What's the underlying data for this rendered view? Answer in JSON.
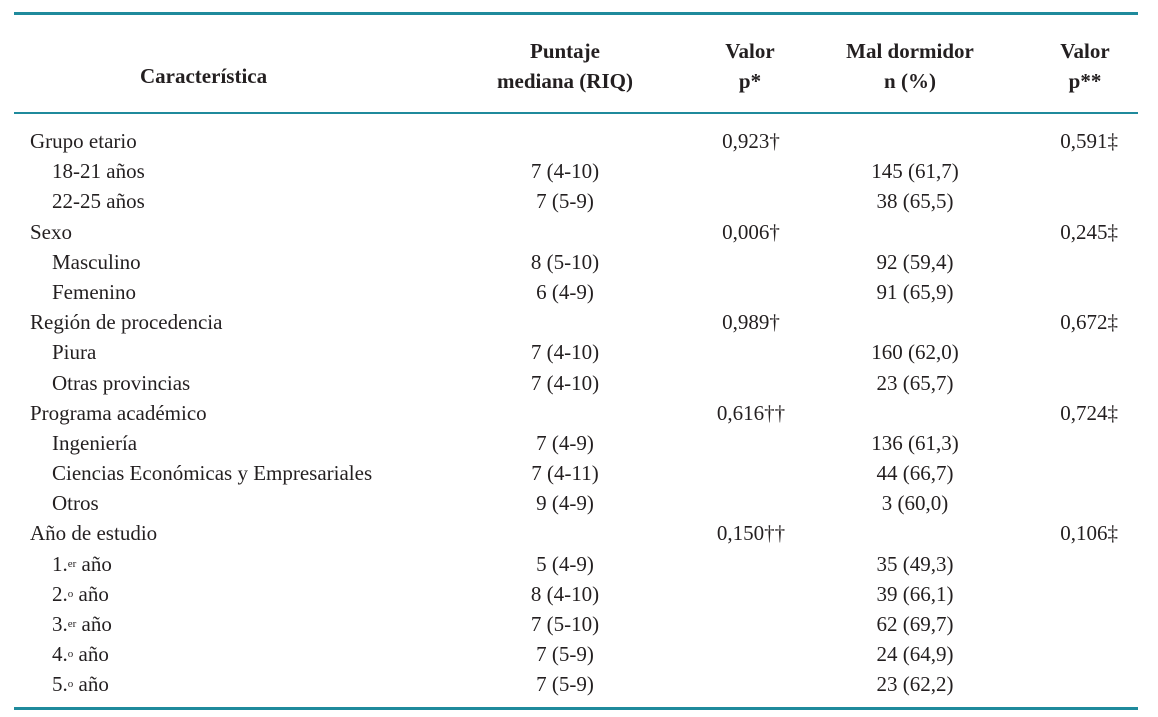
{
  "table": {
    "headers": {
      "caracteristica": "Característica",
      "puntaje_line1": "Puntaje",
      "puntaje_line2": "mediana (RIQ)",
      "valor1_line1": "Valor",
      "valor1_line2": "p*",
      "mal_line1": "Mal dormidor",
      "mal_line2": "n (%)",
      "valor2_line1": "Valor",
      "valor2_line2": "p**"
    },
    "rows": [
      {
        "type": "group",
        "label": "Grupo etario",
        "puntaje": "",
        "valor1": "0,923†",
        "mal": "",
        "valor2": "0,591‡"
      },
      {
        "type": "sub",
        "label": "18-21 años",
        "puntaje": "7 (4-10)",
        "valor1": "",
        "mal": "145 (61,7)",
        "valor2": ""
      },
      {
        "type": "sub",
        "label": "22-25 años",
        "puntaje": "7 (5-9)",
        "valor1": "",
        "mal": "38 (65,5)",
        "valor2": ""
      },
      {
        "type": "group",
        "label": "Sexo",
        "puntaje": "",
        "valor1": "0,006†",
        "mal": "",
        "valor2": "0,245‡"
      },
      {
        "type": "sub",
        "label": "Masculino",
        "puntaje": "8 (5-10)",
        "valor1": "",
        "mal": "92 (59,4)",
        "valor2": ""
      },
      {
        "type": "sub",
        "label": "Femenino",
        "puntaje": "6 (4-9)",
        "valor1": "",
        "mal": "91 (65,9)",
        "valor2": ""
      },
      {
        "type": "group",
        "label": "Región de procedencia",
        "puntaje": "",
        "valor1": "0,989†",
        "mal": "",
        "valor2": "0,672‡"
      },
      {
        "type": "sub",
        "label": "Piura",
        "puntaje": "7 (4-10)",
        "valor1": "",
        "mal": "160 (62,0)",
        "valor2": ""
      },
      {
        "type": "sub",
        "label": "Otras provincias",
        "puntaje": "7 (4-10)",
        "valor1": "",
        "mal": "23 (65,7)",
        "valor2": ""
      },
      {
        "type": "group",
        "label": "Programa académico",
        "puntaje": "",
        "valor1": "0,616††",
        "mal": "",
        "valor2": "0,724‡"
      },
      {
        "type": "sub",
        "label": "Ingeniería",
        "puntaje": "7 (4-9)",
        "valor1": "",
        "mal": "136 (61,3)",
        "valor2": ""
      },
      {
        "type": "sub",
        "label": "Ciencias Económicas y Empresariales",
        "puntaje": "7 (4-11)",
        "valor1": "",
        "mal": "44 (66,7)",
        "valor2": ""
      },
      {
        "type": "sub",
        "label": "Otros",
        "puntaje": "9 (4-9)",
        "valor1": "",
        "mal": "3 (60,0)",
        "valor2": ""
      },
      {
        "type": "group",
        "label": "Año de estudio",
        "puntaje": "",
        "valor1": "0,150††",
        "mal": "",
        "valor2": "0,106‡"
      },
      {
        "type": "sub",
        "label": "1.",
        "sup": "er",
        "label_after": " año",
        "puntaje": "5 (4-9)",
        "valor1": "",
        "mal": "35 (49,3)",
        "valor2": ""
      },
      {
        "type": "sub",
        "label": "2.",
        "sup": "o",
        "label_after": " año",
        "puntaje": "8 (4-10)",
        "valor1": "",
        "mal": "39 (66,1)",
        "valor2": ""
      },
      {
        "type": "sub",
        "label": "3.",
        "sup": "er",
        "label_after": " año",
        "puntaje": "7 (5-10)",
        "valor1": "",
        "mal": "62 (69,7)",
        "valor2": ""
      },
      {
        "type": "sub",
        "label": "4.",
        "sup": "o",
        "label_after": " año",
        "puntaje": "7 (5-9)",
        "valor1": "",
        "mal": "24 (64,9)",
        "valor2": ""
      },
      {
        "type": "sub",
        "label": "5.",
        "sup": "o",
        "label_after": " año",
        "puntaje": "7 (5-9)",
        "valor1": "",
        "mal": "23 (62,2)",
        "valor2": ""
      }
    ]
  },
  "colors": {
    "rule": "#1f8a9c",
    "text": "#231f20"
  }
}
